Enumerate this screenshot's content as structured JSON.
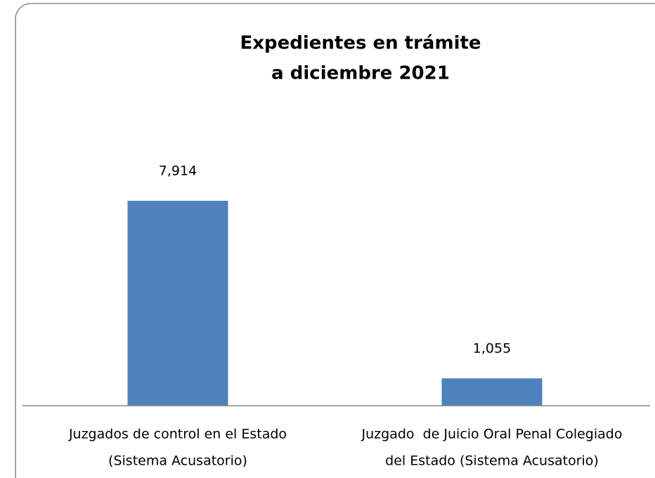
{
  "chart_data": {
    "type": "bar",
    "title": [
      "Expedientes en trámite",
      "a diciembre 2021"
    ],
    "categories": [
      [
        "Juzgados de control en el Estado",
        "(Sistema Acusatorio)"
      ],
      [
        "Juzgado  de Juicio Oral Penal Colegiado",
        "del Estado (Sistema Acusatorio)"
      ]
    ],
    "values": [
      7914,
      1055
    ],
    "value_labels": [
      "7,914",
      "1,055"
    ],
    "color": "#4f81bd",
    "ylim": [
      0,
      9000
    ]
  }
}
